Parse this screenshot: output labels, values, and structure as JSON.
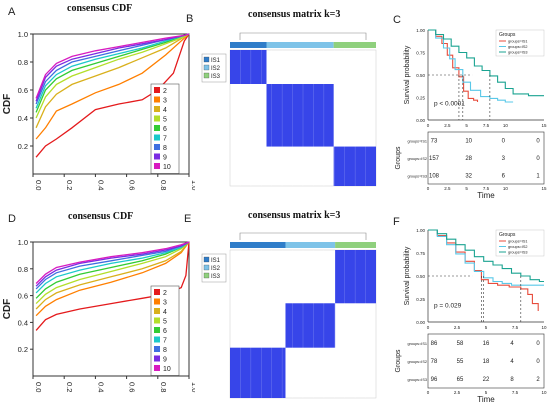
{
  "panel_labels": [
    "A",
    "B",
    "C",
    "D",
    "E",
    "F"
  ],
  "chart_data": [
    {
      "id": "A",
      "type": "line",
      "title": "consensus CDF",
      "ylabel": "CDF",
      "xlim": [
        0,
        1
      ],
      "ylim": [
        0,
        1
      ],
      "x_ticks": [
        "0.0",
        "0.2",
        "0.4",
        "0.6",
        "0.8",
        "1.0"
      ],
      "y_ticks": [
        "0.2",
        "0.4",
        "0.6",
        "0.8",
        "1.0"
      ],
      "legend_position": "bottom-right",
      "series": [
        {
          "name": "2",
          "color": "#e41a1c",
          "x": [
            0.02,
            0.08,
            0.15,
            0.25,
            0.4,
            0.55,
            0.7,
            0.8,
            0.9,
            0.97,
            1.0
          ],
          "y": [
            0.12,
            0.2,
            0.25,
            0.33,
            0.46,
            0.5,
            0.53,
            0.6,
            0.72,
            0.95,
            1.0
          ]
        },
        {
          "name": "3",
          "color": "#ff7f00",
          "x": [
            0.02,
            0.08,
            0.15,
            0.25,
            0.4,
            0.55,
            0.7,
            0.85,
            0.97,
            1.0
          ],
          "y": [
            0.25,
            0.33,
            0.45,
            0.5,
            0.58,
            0.64,
            0.72,
            0.85,
            0.97,
            1.0
          ]
        },
        {
          "name": "4",
          "color": "#d9b01c",
          "x": [
            0.02,
            0.08,
            0.15,
            0.25,
            0.4,
            0.55,
            0.7,
            0.85,
            0.97,
            1.0
          ],
          "y": [
            0.33,
            0.48,
            0.57,
            0.64,
            0.7,
            0.76,
            0.83,
            0.9,
            0.98,
            1.0
          ]
        },
        {
          "name": "5",
          "color": "#b3de2a",
          "x": [
            0.02,
            0.08,
            0.15,
            0.25,
            0.4,
            0.55,
            0.7,
            0.85,
            0.97,
            1.0
          ],
          "y": [
            0.4,
            0.55,
            0.64,
            0.7,
            0.76,
            0.82,
            0.87,
            0.93,
            0.98,
            1.0
          ]
        },
        {
          "name": "6",
          "color": "#33cc33",
          "x": [
            0.02,
            0.08,
            0.15,
            0.25,
            0.4,
            0.55,
            0.7,
            0.85,
            0.97,
            1.0
          ],
          "y": [
            0.44,
            0.6,
            0.68,
            0.74,
            0.79,
            0.84,
            0.89,
            0.94,
            0.99,
            1.0
          ]
        },
        {
          "name": "7",
          "color": "#1bc9c9",
          "x": [
            0.02,
            0.08,
            0.15,
            0.25,
            0.4,
            0.55,
            0.7,
            0.85,
            0.97,
            1.0
          ],
          "y": [
            0.47,
            0.63,
            0.71,
            0.77,
            0.82,
            0.86,
            0.9,
            0.95,
            0.99,
            1.0
          ]
        },
        {
          "name": "8",
          "color": "#3f6fe0",
          "x": [
            0.02,
            0.08,
            0.15,
            0.25,
            0.4,
            0.55,
            0.7,
            0.85,
            0.97,
            1.0
          ],
          "y": [
            0.5,
            0.66,
            0.74,
            0.8,
            0.84,
            0.88,
            0.92,
            0.96,
            0.99,
            1.0
          ]
        },
        {
          "name": "9",
          "color": "#7a2be2",
          "x": [
            0.02,
            0.08,
            0.15,
            0.25,
            0.4,
            0.55,
            0.7,
            0.85,
            0.97,
            1.0
          ],
          "y": [
            0.52,
            0.69,
            0.77,
            0.82,
            0.86,
            0.9,
            0.93,
            0.96,
            0.99,
            1.0
          ]
        },
        {
          "name": "10",
          "color": "#d81bc0",
          "x": [
            0.02,
            0.08,
            0.15,
            0.25,
            0.4,
            0.55,
            0.7,
            0.85,
            0.97,
            1.0
          ],
          "y": [
            0.54,
            0.71,
            0.79,
            0.84,
            0.88,
            0.91,
            0.94,
            0.97,
            0.99,
            1.0
          ]
        }
      ]
    },
    {
      "id": "B",
      "type": "heatmap",
      "title": "consensus matrix k=3",
      "legend": [
        {
          "name": "IS1",
          "color": "#2f7dc9"
        },
        {
          "name": "IS2",
          "color": "#7ec3e8"
        },
        {
          "name": "IS3",
          "color": "#8fd07d"
        }
      ],
      "clusters": [
        {
          "color": "#2f7dc9",
          "fraction": 0.25
        },
        {
          "color": "#7ec3e8",
          "fraction": 0.46
        },
        {
          "color": "#8fd07d",
          "fraction": 0.29
        }
      ],
      "blocks": [
        [
          0.0,
          0.25,
          0.0,
          0.25
        ],
        [
          0.25,
          0.71,
          0.25,
          0.71
        ],
        [
          0.71,
          1.0,
          0.71,
          1.0
        ]
      ],
      "cell_color": "#1b2be6"
    },
    {
      "id": "C",
      "type": "line",
      "ylabel": "Survival probability",
      "xlabel": "Time",
      "legend_title": "Groups",
      "legend_position": "top-right",
      "pvalue": "p < 0.0001",
      "xlim": [
        0,
        15
      ],
      "ylim": [
        0,
        1
      ],
      "x_ticks": [
        "0",
        "2.5",
        "5",
        "7.5",
        "10",
        "15"
      ],
      "y_ticks": [
        "0.00",
        "0.25",
        "0.50",
        "0.75",
        "1.00"
      ],
      "table_ylabel": "Groups",
      "series": [
        {
          "name": "groups=IS1",
          "color": "#e74c3c",
          "x": [
            0,
            1,
            1.8,
            2.5,
            3.2,
            4,
            4.6,
            5.2,
            5.9,
            6.4
          ],
          "y": [
            1.0,
            0.93,
            0.85,
            0.72,
            0.58,
            0.48,
            0.32,
            0.24,
            0.22,
            0.2
          ]
        },
        {
          "name": "groups=IS2",
          "color": "#5ac8e8",
          "x": [
            0,
            1,
            2,
            2.8,
            3.5,
            4.5,
            5.5,
            6.8,
            8,
            9,
            10,
            11
          ],
          "y": [
            1.0,
            0.91,
            0.8,
            0.68,
            0.56,
            0.42,
            0.33,
            0.26,
            0.24,
            0.22,
            0.2,
            0.2
          ]
        },
        {
          "name": "groups=IS3",
          "color": "#1aa391",
          "x": [
            0,
            1,
            2,
            3,
            4,
            5,
            6,
            7,
            8,
            9,
            10,
            11,
            13,
            15
          ],
          "y": [
            1.0,
            0.95,
            0.9,
            0.82,
            0.75,
            0.69,
            0.6,
            0.55,
            0.49,
            0.42,
            0.35,
            0.29,
            0.27,
            0.27
          ]
        }
      ],
      "risk_table": [
        {
          "group": "groups=IS1",
          "counts": [
            "73",
            "10",
            "0",
            "0"
          ]
        },
        {
          "group": "groups=IS2",
          "counts": [
            "157",
            "28",
            "3",
            "0"
          ]
        },
        {
          "group": "groups=IS3",
          "counts": [
            "108",
            "32",
            "6",
            "1"
          ]
        }
      ]
    },
    {
      "id": "D",
      "type": "line",
      "title": "consensus CDF",
      "ylabel": "CDF",
      "xlim": [
        0,
        1
      ],
      "ylim": [
        0,
        1
      ],
      "x_ticks": [
        "0.0",
        "0.2",
        "0.4",
        "0.6",
        "0.8",
        "1.0"
      ],
      "y_ticks": [
        "0.2",
        "0.4",
        "0.6",
        "0.8",
        "1.0"
      ],
      "legend_position": "bottom-right",
      "series": [
        {
          "name": "2",
          "color": "#e41a1c",
          "x": [
            0.02,
            0.08,
            0.15,
            0.3,
            0.5,
            0.7,
            0.85,
            0.95,
            0.98,
            1.0
          ],
          "y": [
            0.34,
            0.42,
            0.46,
            0.5,
            0.54,
            0.58,
            0.61,
            0.66,
            0.75,
            1.0
          ]
        },
        {
          "name": "3",
          "color": "#ff7f00",
          "x": [
            0.02,
            0.08,
            0.15,
            0.3,
            0.5,
            0.7,
            0.85,
            0.95,
            1.0
          ],
          "y": [
            0.45,
            0.52,
            0.57,
            0.64,
            0.7,
            0.77,
            0.84,
            0.92,
            1.0
          ]
        },
        {
          "name": "4",
          "color": "#d9b01c",
          "x": [
            0.02,
            0.08,
            0.15,
            0.3,
            0.5,
            0.7,
            0.85,
            0.95,
            1.0
          ],
          "y": [
            0.5,
            0.57,
            0.62,
            0.68,
            0.74,
            0.8,
            0.86,
            0.93,
            1.0
          ]
        },
        {
          "name": "5",
          "color": "#b3de2a",
          "x": [
            0.02,
            0.08,
            0.15,
            0.3,
            0.5,
            0.7,
            0.85,
            0.95,
            1.0
          ],
          "y": [
            0.54,
            0.61,
            0.66,
            0.72,
            0.78,
            0.84,
            0.89,
            0.95,
            1.0
          ]
        },
        {
          "name": "6",
          "color": "#33cc33",
          "x": [
            0.02,
            0.08,
            0.15,
            0.3,
            0.5,
            0.7,
            0.85,
            0.95,
            1.0
          ],
          "y": [
            0.58,
            0.65,
            0.7,
            0.76,
            0.81,
            0.86,
            0.91,
            0.96,
            1.0
          ]
        },
        {
          "name": "7",
          "color": "#1bc9c9",
          "x": [
            0.02,
            0.08,
            0.15,
            0.3,
            0.5,
            0.7,
            0.85,
            0.95,
            1.0
          ],
          "y": [
            0.62,
            0.69,
            0.74,
            0.79,
            0.84,
            0.88,
            0.92,
            0.96,
            1.0
          ]
        },
        {
          "name": "8",
          "color": "#3f6fe0",
          "x": [
            0.02,
            0.08,
            0.15,
            0.3,
            0.5,
            0.7,
            0.85,
            0.95,
            1.0
          ],
          "y": [
            0.65,
            0.72,
            0.77,
            0.82,
            0.86,
            0.9,
            0.93,
            0.97,
            1.0
          ]
        },
        {
          "name": "9",
          "color": "#7a2be2",
          "x": [
            0.02,
            0.08,
            0.15,
            0.3,
            0.5,
            0.7,
            0.85,
            0.95,
            1.0
          ],
          "y": [
            0.67,
            0.74,
            0.79,
            0.84,
            0.88,
            0.91,
            0.94,
            0.97,
            1.0
          ]
        },
        {
          "name": "10",
          "color": "#d81bc0",
          "x": [
            0.02,
            0.08,
            0.15,
            0.3,
            0.5,
            0.7,
            0.85,
            0.95,
            1.0
          ],
          "y": [
            0.69,
            0.76,
            0.81,
            0.85,
            0.89,
            0.92,
            0.95,
            0.98,
            1.0
          ]
        }
      ]
    },
    {
      "id": "E",
      "type": "heatmap",
      "title": "consensus matrix k=3",
      "legend": [
        {
          "name": "IS1",
          "color": "#2f7dc9"
        },
        {
          "name": "IS2",
          "color": "#7ec3e8"
        },
        {
          "name": "IS3",
          "color": "#8fd07d"
        }
      ],
      "clusters": [
        {
          "color": "#2f7dc9",
          "fraction": 0.38
        },
        {
          "color": "#7ec3e8",
          "fraction": 0.34
        },
        {
          "color": "#8fd07d",
          "fraction": 0.28
        }
      ],
      "blocks": [
        [
          0.0,
          0.38,
          0.66,
          1.0
        ],
        [
          0.38,
          0.72,
          0.36,
          0.66
        ],
        [
          0.72,
          1.0,
          0.0,
          0.36
        ]
      ],
      "cell_color": "#1b2be6"
    },
    {
      "id": "F",
      "type": "line",
      "ylabel": "Survival probability",
      "xlabel": "Time",
      "legend_title": "Groups",
      "legend_position": "top-right",
      "pvalue": "p = 0.029",
      "xlim": [
        0,
        10
      ],
      "ylim": [
        0,
        1
      ],
      "x_ticks": [
        "0",
        "2.5",
        "5",
        "7.5",
        "10"
      ],
      "y_ticks": [
        "0.00",
        "0.25",
        "0.50",
        "0.75",
        "1.00"
      ],
      "table_ylabel": "Groups",
      "series": [
        {
          "name": "groups=IS1",
          "color": "#e74c3c",
          "x": [
            0,
            0.8,
            1.6,
            2.4,
            3.2,
            4,
            4.6,
            5.2,
            6,
            7,
            8,
            8.6,
            9,
            9.5
          ],
          "y": [
            1.0,
            0.94,
            0.86,
            0.76,
            0.66,
            0.56,
            0.46,
            0.42,
            0.4,
            0.38,
            0.36,
            0.3,
            0.2,
            0.12
          ]
        },
        {
          "name": "groups=IS2",
          "color": "#5ac8e8",
          "x": [
            0,
            0.8,
            1.6,
            2.4,
            3.2,
            4,
            4.8,
            5.6,
            6.4,
            7.2,
            8,
            9,
            10
          ],
          "y": [
            1.0,
            0.93,
            0.84,
            0.74,
            0.64,
            0.55,
            0.48,
            0.44,
            0.42,
            0.4,
            0.4,
            0.4,
            0.4
          ]
        },
        {
          "name": "groups=IS3",
          "color": "#1aa391",
          "x": [
            0,
            0.8,
            1.6,
            2.4,
            3.2,
            4,
            4.8,
            5.6,
            6.4,
            7.2,
            8,
            8.8,
            9.6,
            10
          ],
          "y": [
            1.0,
            0.96,
            0.9,
            0.84,
            0.78,
            0.71,
            0.66,
            0.62,
            0.58,
            0.53,
            0.5,
            0.46,
            0.44,
            0.44
          ]
        }
      ],
      "risk_table": [
        {
          "group": "groups=IS1",
          "counts": [
            "86",
            "58",
            "16",
            "4",
            "0"
          ]
        },
        {
          "group": "groups=IS2",
          "counts": [
            "78",
            "55",
            "18",
            "4",
            "0"
          ]
        },
        {
          "group": "groups=IS3",
          "counts": [
            "96",
            "65",
            "22",
            "8",
            "2"
          ]
        }
      ]
    }
  ]
}
